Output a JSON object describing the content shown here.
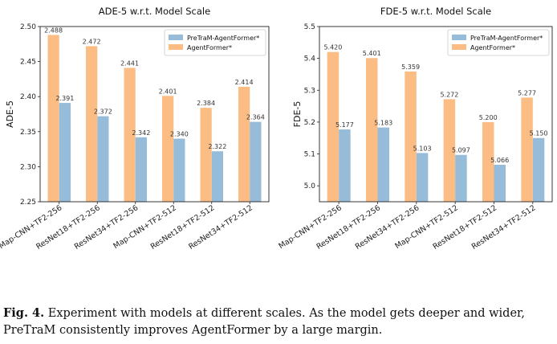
{
  "colors": {
    "pretram": "#97bcd9",
    "agentformer": "#fcbd85"
  },
  "chart_data": [
    {
      "type": "bar",
      "title": "ADE-5 w.r.t. Model Scale",
      "xlabel": "",
      "ylabel": "ADE-5",
      "ylim": [
        2.25,
        2.5
      ],
      "yticks": [
        "2.25",
        "2.30",
        "2.35",
        "2.40",
        "2.45",
        "2.50"
      ],
      "legend_position": "top-right",
      "categories": [
        "Map-CNN+TF2-256",
        "ResNet18+TF2-256",
        "ResNet34+TF2-256",
        "Map-CNN+TF2-512",
        "ResNet18+TF2-512",
        "ResNet34+TF2-512"
      ],
      "series": [
        {
          "name": "AgentFormer*",
          "values": [
            2.488,
            2.472,
            2.441,
            2.401,
            2.384,
            2.414
          ],
          "labels": [
            "2.488",
            "2.472",
            "2.441",
            "2.401",
            "2.384",
            "2.414"
          ]
        },
        {
          "name": "PreTraM-AgentFormer*",
          "values": [
            2.391,
            2.372,
            2.342,
            2.34,
            2.322,
            2.364
          ],
          "labels": [
            "2.391",
            "2.372",
            "2.342",
            "2.340",
            "2.322",
            "2.364"
          ]
        }
      ]
    },
    {
      "type": "bar",
      "title": "FDE-5 w.r.t. Model Scale",
      "xlabel": "",
      "ylabel": "FDE-5",
      "ylim": [
        4.95,
        5.5
      ],
      "yticks": [
        "5.0",
        "5.1",
        "5.2",
        "5.3",
        "5.4",
        "5.5"
      ],
      "legend_position": "top-right",
      "categories": [
        "Map-CNN+TF2-256",
        "ResNet18+TF2-256",
        "ResNet34+TF2-256",
        "Map-CNN+TF2-512",
        "ResNet18+TF2-512",
        "ResNet34+TF2-512"
      ],
      "series": [
        {
          "name": "AgentFormer*",
          "values": [
            5.42,
            5.401,
            5.359,
            5.272,
            5.2,
            5.277
          ],
          "labels": [
            "5.420",
            "5.401",
            "5.359",
            "5.272",
            "5.200",
            "5.277"
          ]
        },
        {
          "name": "PreTraM-AgentFormer*",
          "values": [
            5.177,
            5.183,
            5.103,
            5.097,
            5.066,
            5.15
          ],
          "labels": [
            "5.177",
            "5.183",
            "5.103",
            "5.097",
            "5.066",
            "5.150"
          ]
        }
      ]
    }
  ],
  "caption": {
    "label": "Fig. 4.",
    "text": " Experiment with models at different scales. As the model gets deeper and wider, PreTraM consistently improves AgentFormer by a large margin."
  }
}
